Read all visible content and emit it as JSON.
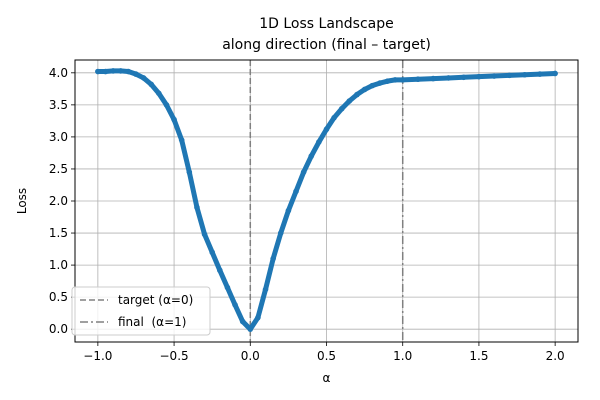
{
  "chart_data": {
    "type": "line",
    "title_line1": "1D Loss Landscape",
    "title_line2": "along direction (final – target)",
    "xlabel": "α",
    "ylabel": "Loss",
    "xlim": [
      -1.15,
      2.15
    ],
    "ylim": [
      -0.2,
      4.2
    ],
    "xticks": [
      -1.0,
      -0.5,
      0.0,
      0.5,
      1.0,
      1.5,
      2.0
    ],
    "xtick_labels": [
      "−1.0",
      "−0.5",
      "0.0",
      "0.5",
      "1.0",
      "1.5",
      "2.0"
    ],
    "yticks": [
      0.0,
      0.5,
      1.0,
      1.5,
      2.0,
      2.5,
      3.0,
      3.5,
      4.0
    ],
    "ytick_labels": [
      "0.0",
      "0.5",
      "1.0",
      "1.5",
      "2.0",
      "2.5",
      "3.0",
      "3.5",
      "4.0"
    ],
    "grid": true,
    "legend_position": "lower-left",
    "series_color": "#1f77b4",
    "ref_line_color": "#808080",
    "series": [
      {
        "name": "",
        "x": [
          -1.0,
          -0.95,
          -0.9,
          -0.85,
          -0.8,
          -0.75,
          -0.7,
          -0.65,
          -0.6,
          -0.55,
          -0.5,
          -0.45,
          -0.4,
          -0.35,
          -0.3,
          -0.25,
          -0.2,
          -0.15,
          -0.1,
          -0.05,
          0.0,
          0.05,
          0.1,
          0.15,
          0.2,
          0.25,
          0.3,
          0.35,
          0.4,
          0.45,
          0.5,
          0.55,
          0.6,
          0.65,
          0.7,
          0.75,
          0.8,
          0.85,
          0.9,
          0.95,
          1.0,
          1.1,
          1.2,
          1.3,
          1.4,
          1.5,
          1.6,
          1.7,
          1.8,
          1.9,
          2.0
        ],
        "y": [
          4.02,
          4.02,
          4.03,
          4.03,
          4.02,
          3.98,
          3.92,
          3.82,
          3.68,
          3.5,
          3.27,
          2.95,
          2.45,
          1.9,
          1.48,
          1.2,
          0.92,
          0.65,
          0.38,
          0.12,
          0.0,
          0.18,
          0.62,
          1.1,
          1.5,
          1.85,
          2.15,
          2.45,
          2.7,
          2.92,
          3.12,
          3.3,
          3.44,
          3.56,
          3.66,
          3.74,
          3.8,
          3.84,
          3.87,
          3.89,
          3.89,
          3.9,
          3.91,
          3.92,
          3.93,
          3.94,
          3.95,
          3.96,
          3.97,
          3.98,
          3.99
        ]
      }
    ],
    "ref_lines": [
      {
        "x": 0.0,
        "style": "dashed",
        "label": "target (α=0)"
      },
      {
        "x": 1.0,
        "style": "dashdot",
        "label": "final  (α=1)"
      }
    ]
  }
}
